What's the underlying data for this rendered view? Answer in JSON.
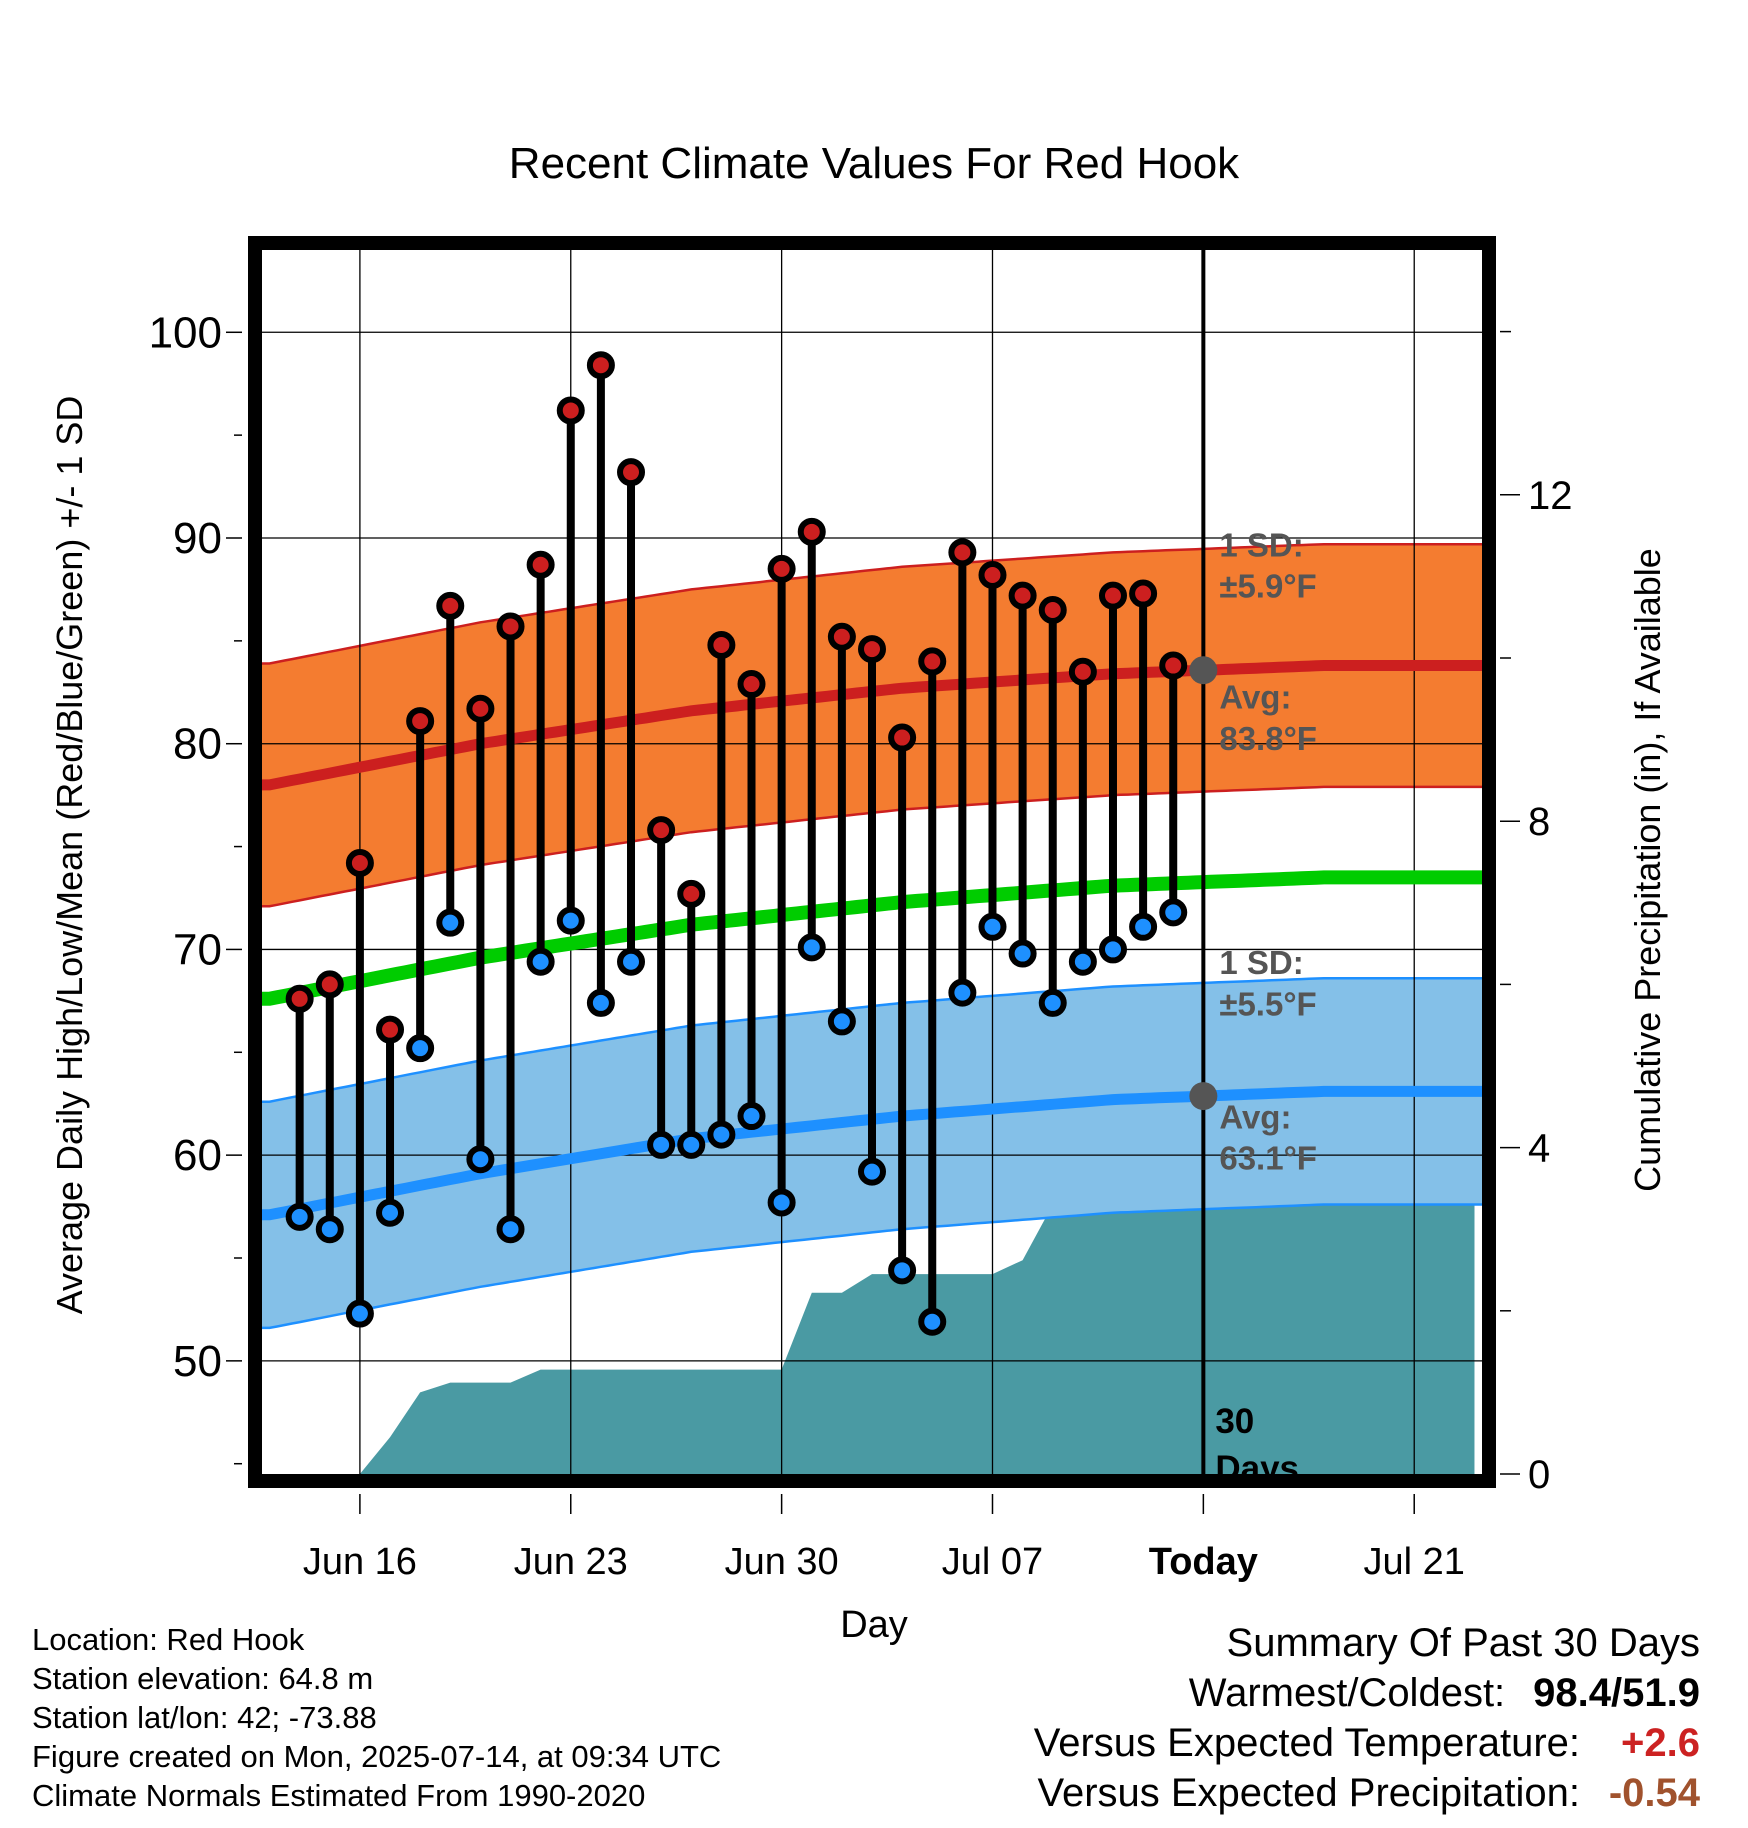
{
  "chart_data": {
    "type": "line",
    "title": "Recent Climate Values For Red Hook",
    "xlabel": "Day",
    "ylabel": "Average Daily High/Low/Mean (Red/Blue/Green) +/- 1 SD",
    "y2label": "Cumulative Precipitation (in), If Available",
    "x_tick_labels": [
      "Jun 16",
      "Jun 23",
      "Jun 30",
      "Jul 07",
      "Today",
      "Jul 21"
    ],
    "x_ticks": [
      "2025-06-16",
      "2025-06-23",
      "2025-06-30",
      "2025-07-07",
      "2025-07-14",
      "2025-07-21"
    ],
    "xlim": [
      "2025-06-12 18:00",
      "2025-07-23 06:00"
    ],
    "ylim": [
      44.5,
      104
    ],
    "y_ticks": [
      50,
      60,
      70,
      80,
      90,
      100
    ],
    "y2lim": [
      0,
      15
    ],
    "y2_ticks": [
      0,
      4,
      8,
      12
    ],
    "grid": true,
    "today": "2025-07-14",
    "days": [
      "2025-06-14",
      "2025-06-15",
      "2025-06-16",
      "2025-06-17",
      "2025-06-18",
      "2025-06-19",
      "2025-06-20",
      "2025-06-21",
      "2025-06-22",
      "2025-06-23",
      "2025-06-24",
      "2025-06-25",
      "2025-06-26",
      "2025-06-27",
      "2025-06-28",
      "2025-06-29",
      "2025-06-30",
      "2025-07-01",
      "2025-07-02",
      "2025-07-03",
      "2025-07-04",
      "2025-07-05",
      "2025-07-06",
      "2025-07-07",
      "2025-07-08",
      "2025-07-09",
      "2025-07-10",
      "2025-07-11",
      "2025-07-12",
      "2025-07-13"
    ],
    "daily_high": [
      67.6,
      68.3,
      74.2,
      66.1,
      81.1,
      86.7,
      81.7,
      85.7,
      88.7,
      96.2,
      98.4,
      93.2,
      75.8,
      72.7,
      84.8,
      82.9,
      88.5,
      90.3,
      85.2,
      84.6,
      80.3,
      84.0,
      89.3,
      88.2,
      87.2,
      86.5,
      83.5,
      87.2,
      87.3,
      83.8
    ],
    "daily_low": [
      57.0,
      56.4,
      52.3,
      57.2,
      65.2,
      71.3,
      59.8,
      56.4,
      69.4,
      71.4,
      67.4,
      69.4,
      60.5,
      60.5,
      61.0,
      61.9,
      57.7,
      70.1,
      66.5,
      59.2,
      54.4,
      51.9,
      67.9,
      71.1,
      69.8,
      67.4,
      69.4,
      70.0,
      71.1,
      71.8
    ],
    "normals": {
      "x": [
        "2025-06-13",
        "2025-06-20",
        "2025-06-27",
        "2025-07-04",
        "2025-07-11",
        "2025-07-18",
        "2025-07-23"
      ],
      "avg_high": [
        78.0,
        80.0,
        81.6,
        82.7,
        83.4,
        83.8,
        83.8
      ],
      "avg_low": [
        57.1,
        59.1,
        60.8,
        61.9,
        62.7,
        63.1,
        63.1
      ],
      "avg_mean": [
        67.6,
        69.6,
        71.2,
        72.3,
        73.1,
        73.5,
        73.5
      ],
      "sd_high": 5.9,
      "sd_low": 5.5
    },
    "precip": {
      "x": [
        "2025-06-16",
        "2025-06-17",
        "2025-06-18",
        "2025-06-19",
        "2025-06-21",
        "2025-06-22",
        "2025-06-30",
        "2025-07-01",
        "2025-07-02",
        "2025-07-03",
        "2025-07-06",
        "2025-07-07",
        "2025-07-08",
        "2025-07-09",
        "2025-07-10",
        "2025-07-11",
        "2025-07-14",
        "2025-07-23"
      ],
      "values": [
        0.0,
        0.45,
        1.0,
        1.12,
        1.12,
        1.28,
        1.28,
        2.22,
        2.22,
        2.45,
        2.45,
        2.45,
        2.62,
        3.3,
        3.45,
        3.55,
        3.55,
        3.55
      ]
    },
    "annotations": {
      "high_sd": {
        "title": "1 SD:",
        "text": "±5.9°F"
      },
      "high_avg": {
        "title": "Avg:",
        "text": "83.8°F"
      },
      "low_sd": {
        "title": "1 SD:",
        "text": "±5.5°F"
      },
      "low_avg": {
        "title": "Avg:",
        "text": "63.1°F"
      },
      "window": [
        "30",
        "Days"
      ]
    },
    "colors": {
      "high": "#cc1f1f",
      "high_band": "#f47c30",
      "low": "#1e90ff",
      "low_band": "#84c0e8",
      "mean": "#00cc00",
      "precip": "#4a9aa3",
      "annotation": "#555555"
    }
  },
  "info": {
    "location": "Location: Red Hook",
    "elevation": "Station elevation: 64.8 m",
    "latlon": "Station lat/lon: 42; -73.88",
    "created": "Figure created on Mon, 2025-07-14, at 09:34 UTC",
    "normals": "Climate Normals Estimated From 1990-2020"
  },
  "summary": {
    "title": "Summary Of Past 30 Days",
    "warmest_label": "Warmest/Coldest:",
    "warmest_value": "98.4/51.9",
    "temp_label": "Versus Expected Temperature:",
    "temp_value": "+2.6",
    "temp_color": "#cc2222",
    "precip_label": "Versus Expected Precipitation:",
    "precip_value": "-0.54",
    "precip_color": "#a0522d"
  }
}
